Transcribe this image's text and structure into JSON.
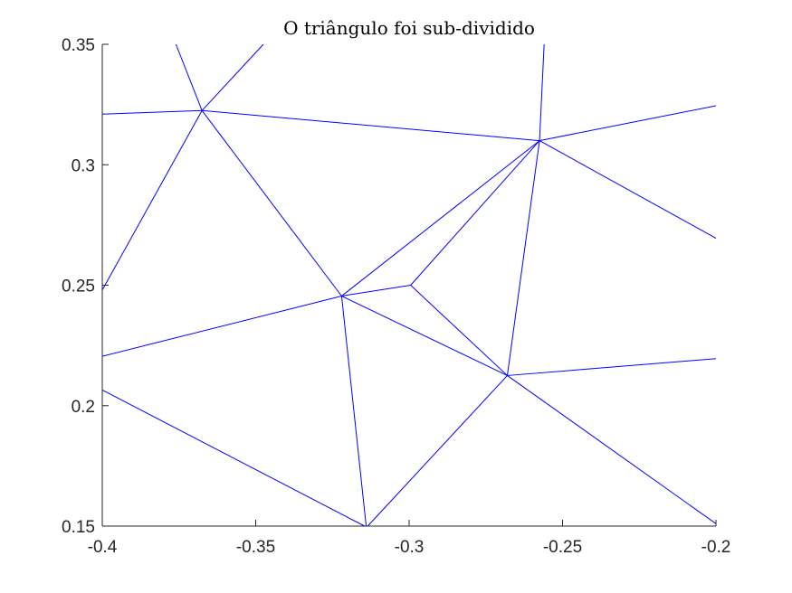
{
  "chart_data": {
    "type": "line",
    "title": "O triângulo foi sub-dividido",
    "xlabel": "",
    "ylabel": "",
    "xlim": [
      -0.4,
      -0.2
    ],
    "ylim": [
      0.15,
      0.35
    ],
    "xticks": [
      -0.4,
      -0.35,
      -0.3,
      -0.25,
      -0.2
    ],
    "xtick_labels": [
      "-0.4",
      "-0.35",
      "-0.3",
      "-0.25",
      "-0.2"
    ],
    "yticks": [
      0.15,
      0.2,
      0.25,
      0.3,
      0.35
    ],
    "ytick_labels": [
      "0.15",
      "0.2",
      "0.25",
      "0.3",
      "0.35"
    ],
    "grid": false,
    "line_color": "#0000ff",
    "segments": [
      [
        [
          -0.376,
          0.351
        ],
        [
          -0.3675,
          0.3225
        ]
      ],
      [
        [
          -0.3475,
          0.3505
        ],
        [
          -0.3675,
          0.3225
        ]
      ],
      [
        [
          -0.4,
          0.321
        ],
        [
          -0.3675,
          0.3225
        ]
      ],
      [
        [
          -0.3675,
          0.3225
        ],
        [
          -0.2575,
          0.31
        ]
      ],
      [
        [
          -0.3675,
          0.3225
        ],
        [
          -0.4,
          0.248
        ]
      ],
      [
        [
          -0.3675,
          0.3225
        ],
        [
          -0.322,
          0.2455
        ]
      ],
      [
        [
          -0.256,
          0.351
        ],
        [
          -0.2575,
          0.31
        ]
      ],
      [
        [
          -0.2575,
          0.31
        ],
        [
          -0.2,
          0.3245
        ]
      ],
      [
        [
          -0.2575,
          0.31
        ],
        [
          -0.2,
          0.2695
        ]
      ],
      [
        [
          -0.2575,
          0.31
        ],
        [
          -0.322,
          0.2455
        ]
      ],
      [
        [
          -0.2575,
          0.31
        ],
        [
          -0.2995,
          0.25
        ]
      ],
      [
        [
          -0.2575,
          0.31
        ],
        [
          -0.268,
          0.2125
        ]
      ],
      [
        [
          -0.322,
          0.2455
        ],
        [
          -0.2995,
          0.25
        ]
      ],
      [
        [
          -0.2995,
          0.25
        ],
        [
          -0.268,
          0.2125
        ]
      ],
      [
        [
          -0.4,
          0.2205
        ],
        [
          -0.322,
          0.2455
        ]
      ],
      [
        [
          -0.322,
          0.2455
        ],
        [
          -0.268,
          0.2125
        ]
      ],
      [
        [
          -0.322,
          0.2455
        ],
        [
          -0.314,
          0.149
        ]
      ],
      [
        [
          -0.268,
          0.2125
        ],
        [
          -0.2,
          0.2195
        ]
      ],
      [
        [
          -0.268,
          0.2125
        ],
        [
          -0.2,
          0.151
        ]
      ],
      [
        [
          -0.268,
          0.2125
        ],
        [
          -0.3135,
          0.149
        ]
      ],
      [
        [
          -0.4,
          0.2065
        ],
        [
          -0.3145,
          0.149
        ]
      ]
    ]
  }
}
